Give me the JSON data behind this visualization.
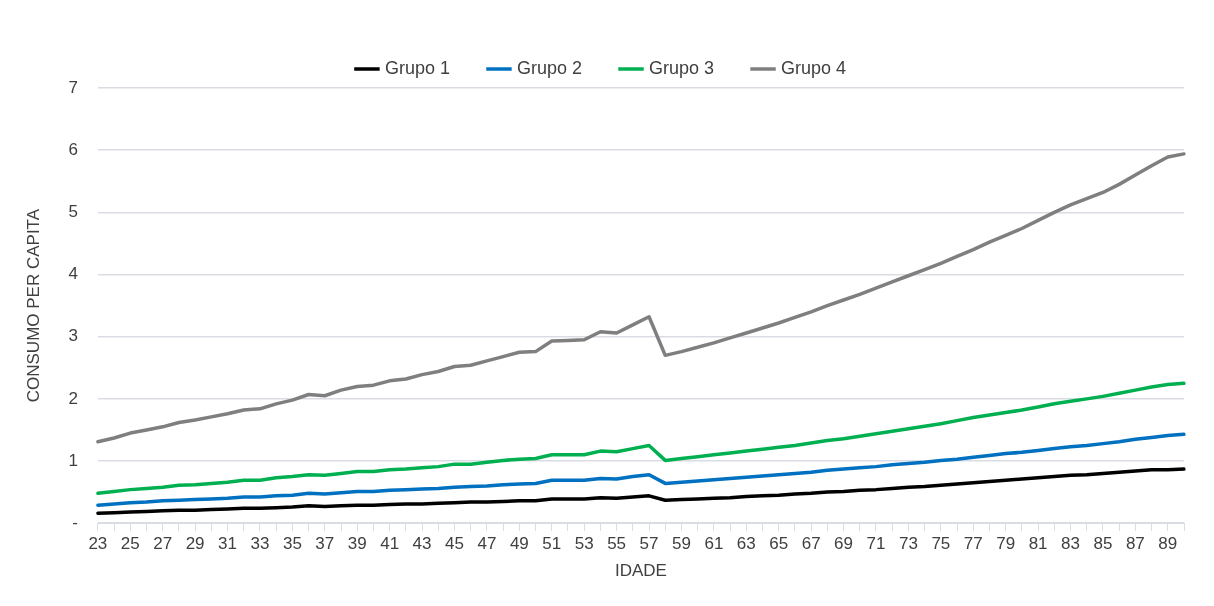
{
  "chart_data": {
    "type": "line",
    "xlabel": "IDADE",
    "ylabel": "CONSUMO PER CAPITA",
    "categories": [
      "23",
      null,
      "25",
      null,
      "27",
      null,
      "29",
      null,
      "31",
      null,
      "33",
      null,
      "35",
      null,
      "37",
      null,
      "39",
      null,
      "41",
      null,
      "43",
      null,
      "45",
      null,
      "47",
      null,
      "49",
      null,
      "51",
      null,
      "53",
      null,
      "55",
      null,
      "57",
      null,
      "59",
      null,
      "61",
      null,
      "63",
      null,
      "65",
      null,
      "67",
      null,
      "69",
      null,
      "71",
      null,
      "73",
      null,
      "75",
      null,
      "77",
      null,
      "79",
      null,
      "81",
      null,
      "83",
      null,
      "85",
      null,
      "87",
      null,
      "89",
      null
    ],
    "series": [
      {
        "name": "Grupo 1",
        "color": "#000000",
        "values": [
          0.16,
          0.17,
          0.18,
          0.19,
          0.2,
          0.21,
          0.21,
          0.22,
          0.23,
          0.24,
          0.24,
          0.25,
          0.26,
          0.28,
          0.27,
          0.28,
          0.29,
          0.29,
          0.3,
          0.31,
          0.31,
          0.32,
          0.33,
          0.34,
          0.34,
          0.35,
          0.36,
          0.36,
          0.39,
          0.39,
          0.39,
          0.41,
          0.4,
          0.42,
          0.44,
          0.37,
          0.38,
          0.39,
          0.4,
          0.41,
          0.43,
          0.44,
          0.45,
          0.47,
          0.48,
          0.5,
          0.51,
          0.53,
          0.54,
          0.56,
          0.58,
          0.59,
          0.61,
          0.63,
          0.65,
          0.67,
          0.69,
          0.71,
          0.73,
          0.75,
          0.77,
          0.78,
          0.8,
          0.82,
          0.84,
          0.86,
          0.86,
          0.87
        ]
      },
      {
        "name": "Grupo 2",
        "color": "#0070c0",
        "values": [
          0.29,
          0.31,
          0.33,
          0.34,
          0.36,
          0.37,
          0.38,
          0.39,
          0.4,
          0.42,
          0.42,
          0.44,
          0.45,
          0.48,
          0.47,
          0.49,
          0.51,
          0.51,
          0.53,
          0.54,
          0.55,
          0.56,
          0.58,
          0.59,
          0.6,
          0.62,
          0.63,
          0.64,
          0.69,
          0.69,
          0.69,
          0.72,
          0.71,
          0.75,
          0.78,
          0.64,
          0.66,
          0.68,
          0.7,
          0.72,
          0.74,
          0.76,
          0.78,
          0.8,
          0.82,
          0.85,
          0.87,
          0.89,
          0.91,
          0.94,
          0.96,
          0.98,
          1.01,
          1.03,
          1.06,
          1.09,
          1.12,
          1.14,
          1.17,
          1.2,
          1.23,
          1.25,
          1.28,
          1.31,
          1.35,
          1.38,
          1.41,
          1.43
        ]
      },
      {
        "name": "Grupo 3",
        "color": "#00b050",
        "values": [
          0.48,
          0.51,
          0.54,
          0.56,
          0.58,
          0.61,
          0.62,
          0.64,
          0.66,
          0.69,
          0.69,
          0.73,
          0.75,
          0.78,
          0.77,
          0.8,
          0.83,
          0.83,
          0.86,
          0.87,
          0.89,
          0.91,
          0.95,
          0.95,
          0.98,
          1.01,
          1.03,
          1.04,
          1.1,
          1.1,
          1.1,
          1.16,
          1.15,
          1.2,
          1.25,
          1.01,
          1.04,
          1.07,
          1.1,
          1.13,
          1.16,
          1.19,
          1.22,
          1.25,
          1.29,
          1.33,
          1.36,
          1.4,
          1.44,
          1.48,
          1.52,
          1.56,
          1.6,
          1.65,
          1.7,
          1.74,
          1.78,
          1.82,
          1.87,
          1.92,
          1.96,
          2.0,
          2.04,
          2.09,
          2.14,
          2.19,
          2.23,
          2.25
        ]
      },
      {
        "name": "Grupo 4",
        "color": "#7f7f7f",
        "values": [
          1.31,
          1.37,
          1.45,
          1.5,
          1.55,
          1.62,
          1.66,
          1.71,
          1.76,
          1.82,
          1.84,
          1.92,
          1.98,
          2.07,
          2.05,
          2.14,
          2.2,
          2.22,
          2.29,
          2.32,
          2.39,
          2.44,
          2.52,
          2.54,
          2.61,
          2.68,
          2.75,
          2.76,
          2.93,
          2.94,
          2.95,
          3.08,
          3.06,
          3.19,
          3.32,
          2.7,
          2.76,
          2.83,
          2.9,
          2.98,
          3.06,
          3.14,
          3.22,
          3.31,
          3.4,
          3.5,
          3.59,
          3.68,
          3.78,
          3.88,
          3.98,
          4.08,
          4.18,
          4.29,
          4.4,
          4.52,
          4.63,
          4.74,
          4.87,
          5.0,
          5.12,
          5.22,
          5.32,
          5.45,
          5.6,
          5.75,
          5.89,
          5.94
        ]
      }
    ],
    "ylim": [
      0,
      7
    ],
    "yticks": [
      {
        "value": 0,
        "label": "-"
      },
      1,
      2,
      3,
      4,
      5,
      6,
      7
    ],
    "grid": "y",
    "legend": "top",
    "marker": "none",
    "line_style": "solid"
  }
}
